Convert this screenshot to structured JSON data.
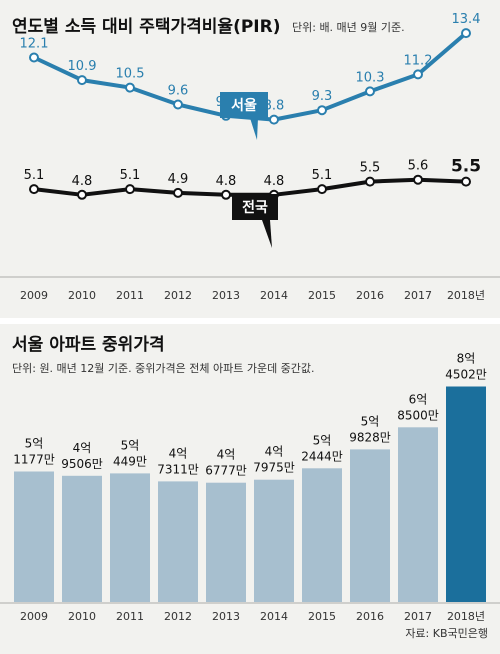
{
  "chart_data": [
    {
      "type": "line",
      "title": "연도별 소득 대비 주택가격비율(PIR)",
      "subtitle": "단위: 배. 매년 9월 기준.",
      "x": [
        "2009",
        "2010",
        "2011",
        "2012",
        "2013",
        "2014",
        "2015",
        "2016",
        "2017",
        "2018년"
      ],
      "series": [
        {
          "name": "서울",
          "values": [
            12.1,
            10.9,
            10.5,
            9.6,
            9.0,
            8.8,
            9.3,
            10.3,
            11.2,
            13.4
          ],
          "labels": [
            "12.1",
            "10.9",
            "10.5",
            "9.6",
            "9.0",
            "8.8",
            "9.3",
            "10.3",
            "11.2",
            "13.4"
          ]
        },
        {
          "name": "전국",
          "values": [
            5.1,
            4.8,
            5.1,
            4.9,
            4.8,
            4.8,
            5.1,
            5.5,
            5.6,
            5.5
          ],
          "labels": [
            "5.1",
            "4.8",
            "5.1",
            "4.9",
            "4.8",
            "4.8",
            "5.1",
            "5.5",
            "5.6",
            "5.5"
          ]
        }
      ],
      "grid": false,
      "colors": {
        "서울": "#2a7fae",
        "전국": "#111111"
      }
    },
    {
      "type": "bar",
      "title": "서울 아파트 중위가격",
      "subtitle": "단위: 원. 매년 12월 기준. 중위가격은 전체 아파트 가운데 중간값.",
      "categories": [
        "2009",
        "2010",
        "2011",
        "2012",
        "2013",
        "2014",
        "2015",
        "2016",
        "2017",
        "2018년"
      ],
      "values": [
        511770000,
        495060000,
        504490000,
        473110000,
        467770000,
        479750000,
        524440000,
        598280000,
        685000000,
        845020000
      ],
      "labels": [
        [
          "5억",
          "1177만"
        ],
        [
          "4억",
          "9506만"
        ],
        [
          "5억",
          "449만"
        ],
        [
          "4억",
          "7311만"
        ],
        [
          "4억",
          "6777만"
        ],
        [
          "4억",
          "7975만"
        ],
        [
          "5억",
          "2444만"
        ],
        [
          "5억",
          "9828만"
        ],
        [
          "6억",
          "8500만"
        ],
        [
          "8억",
          "4502만"
        ]
      ],
      "colors": {
        "bar": "#a7bfcf",
        "highlight": "#1b6f9c"
      }
    }
  ],
  "source": "자료: KB국민은행"
}
